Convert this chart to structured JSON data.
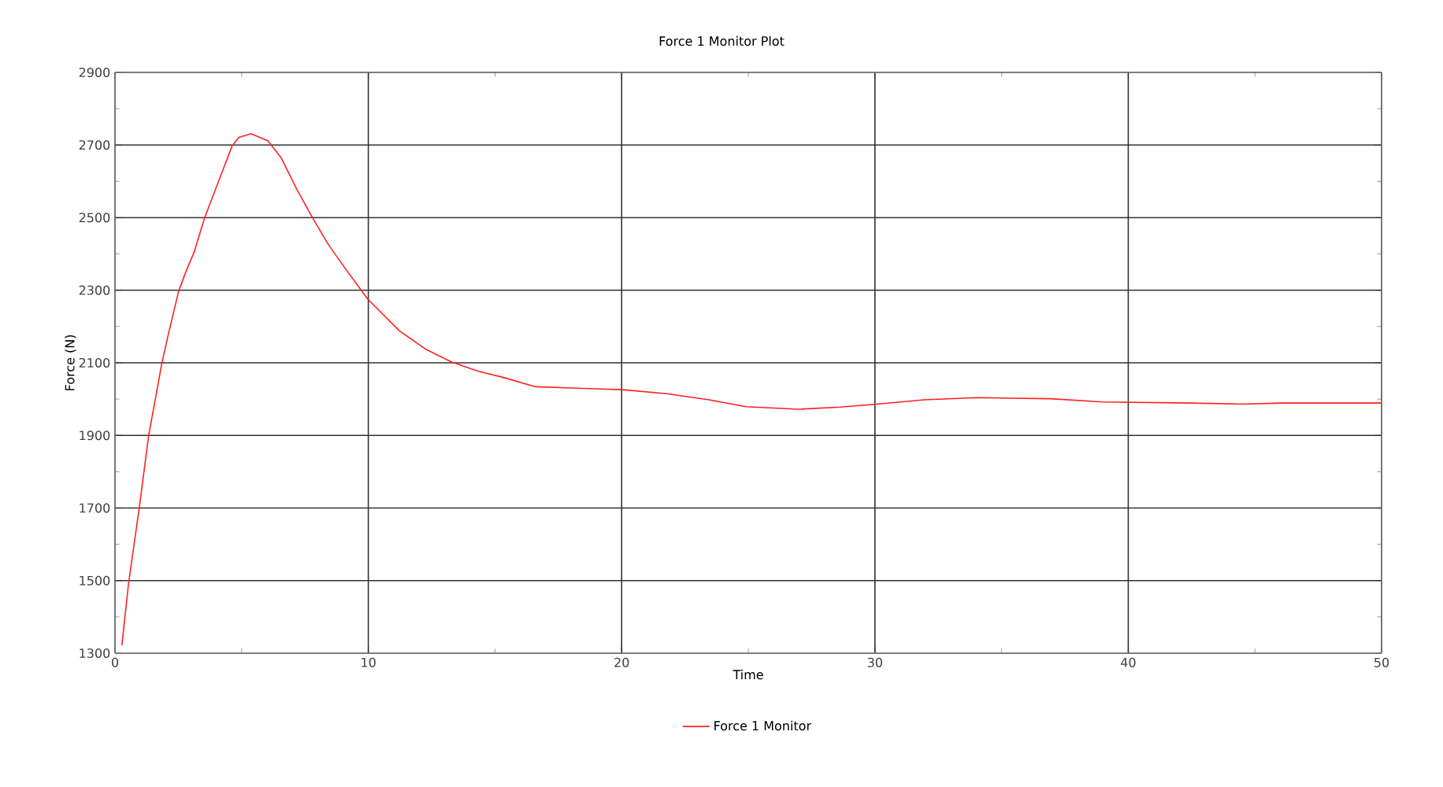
{
  "chart_data": {
    "type": "line",
    "title": "Force 1 Monitor Plot",
    "xlabel": "Time",
    "ylabel": "Force  (N)",
    "xlim": [
      0,
      50
    ],
    "xticks": [
      0,
      10,
      20,
      30,
      40,
      50
    ],
    "ylim": [
      1300,
      2900
    ],
    "yticks": [
      1300,
      1500,
      1700,
      1900,
      2100,
      2300,
      2500,
      2700,
      2900
    ],
    "grid": true,
    "legend": "bottom",
    "marker": "none",
    "line_style": "solid",
    "series": [
      {
        "name": "Force 1 Monitor",
        "color": "#ff2020",
        "x": [
          0.27,
          0.54,
          0.95,
          1.33,
          1.85,
          2.09,
          2.51,
          2.82,
          3.13,
          3.54,
          4.17,
          4.62,
          4.89,
          5.37,
          6.03,
          6.55,
          7.17,
          7.79,
          8.41,
          9.14,
          9.97,
          11.21,
          12.25,
          13.29,
          14.32,
          15.36,
          16.6,
          18.26,
          20.02,
          21.78,
          23.45,
          24.9,
          26.97,
          28.63,
          30.08,
          31.95,
          34.02,
          36.92,
          38.99,
          42.52,
          44.59,
          46.04,
          49.98
        ],
        "values": [
          1322,
          1495,
          1697,
          1900,
          2099,
          2174,
          2297,
          2355,
          2406,
          2500,
          2615,
          2697,
          2721,
          2731,
          2712,
          2666,
          2579,
          2500,
          2427,
          2355,
          2276,
          2189,
          2138,
          2102,
          2077,
          2059,
          2034,
          2030,
          2026,
          2015,
          1998,
          1979,
          1972,
          1978,
          1986,
          1998,
          2004,
          2001,
          1992,
          1989,
          1986,
          1989,
          1989
        ]
      }
    ]
  }
}
